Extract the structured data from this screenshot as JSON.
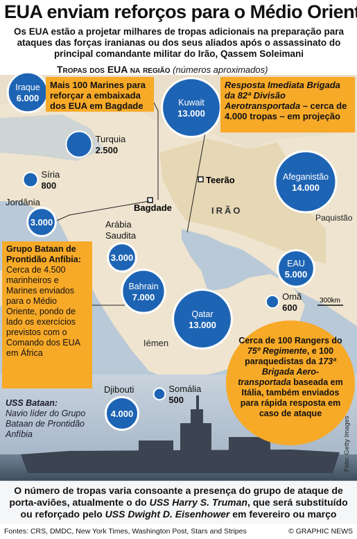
{
  "header": {
    "title": "EUA enviam reforços para o Médio Oriente",
    "subtitle": "Os EUA estão a projetar milhares de tropas adicionais na preparação para ataques das forças iranianas ou dos seus aliados após o assassinato do principal comandante militar do Irão, Qassem Soleimani",
    "section_title": "Tropas dos EUA na região",
    "section_note": "(números aproximados)"
  },
  "locations": [
    {
      "name": [
        "Iraque"
      ],
      "troops": 6000,
      "troops_label": "6.000"
    },
    {
      "name": [
        "Turquia"
      ],
      "troops": 2500,
      "troops_label": "2.500"
    },
    {
      "name": [
        "Síria"
      ],
      "troops": 800,
      "troops_label": "800"
    },
    {
      "name": [
        "Jordânia"
      ],
      "troops": 3000,
      "troops_label": "3.000"
    },
    {
      "name": [
        "Arábia",
        "Saudita"
      ],
      "troops": 3000,
      "troops_label": "3.000"
    },
    {
      "name": [
        "Bahrain"
      ],
      "troops": 7000,
      "troops_label": "7.000"
    },
    {
      "name": [
        "Kuwait"
      ],
      "troops": 13000,
      "troops_label": "13.000"
    },
    {
      "name": [
        "Qatar"
      ],
      "troops": 13000,
      "troops_label": "13.000"
    },
    {
      "name": [
        "Afeganistão"
      ],
      "troops": 14000,
      "troops_label": "14.000"
    },
    {
      "name": [
        "EAU"
      ],
      "troops": 5000,
      "troops_label": "5.000"
    },
    {
      "name": [
        "Omã"
      ],
      "troops": 600,
      "troops_label": "600"
    },
    {
      "name": [
        "Djibouti"
      ],
      "troops": 4000,
      "troops_label": "4.000"
    },
    {
      "name": [
        "Somália"
      ],
      "troops": 500,
      "troops_label": "500"
    }
  ],
  "map_labels": {
    "teerao": "Teerão",
    "bagdade": "Bagdade",
    "irao": "IRÃO",
    "iemen": "Iémen",
    "paquistao": "Paquistão",
    "scale": "300km"
  },
  "callouts": {
    "marines": "Mais 100 Marines para reforçar a embaixada dos EUA em Bagdade",
    "kuwait": [
      "Resposta Imediata Brigada da 82ª Divisão Aerotransportada",
      " – cerca de 4.000 tropas – em projeção"
    ],
    "bataan_title": "Grupo Bataan de Prontidão Anfíbia:",
    "bataan_text": "Cerca de 4.500 marinheiros e Marines enviados para o Médio Oriente, pondo de lado os exercícios previstos com o Comando dos EUA em África",
    "rangers": [
      "Cerca de 100 Rangers do ",
      "75º Regimente",
      ", e 100 paraquedistas da ",
      "173ª Brigada Aero-transportada",
      " baseada em Itália, também enviados para rápida resposta em caso de ataque"
    ],
    "uss_title": "USS Bataan:",
    "uss_text": "Navio líder do Grupo Bataan de Prontidão Anfíbia"
  },
  "bottom_note": [
    "O número de tropas varia consoante a presença do grupo de ataque de porta-aviões, atualmente o do ",
    "USS Harry S. Truman",
    ", que será substituído ou reforçado pelo ",
    "USS Dwight D. Eisenhower",
    " em fevereiro ou março"
  ],
  "footer": {
    "sources": "Fontes: CRS, DMDC, New York Times, Washington Post, Stars and Stripes",
    "copyright": "© GRAPHIC NEWS",
    "photo_credit": "Foto: Getty Images"
  }
}
